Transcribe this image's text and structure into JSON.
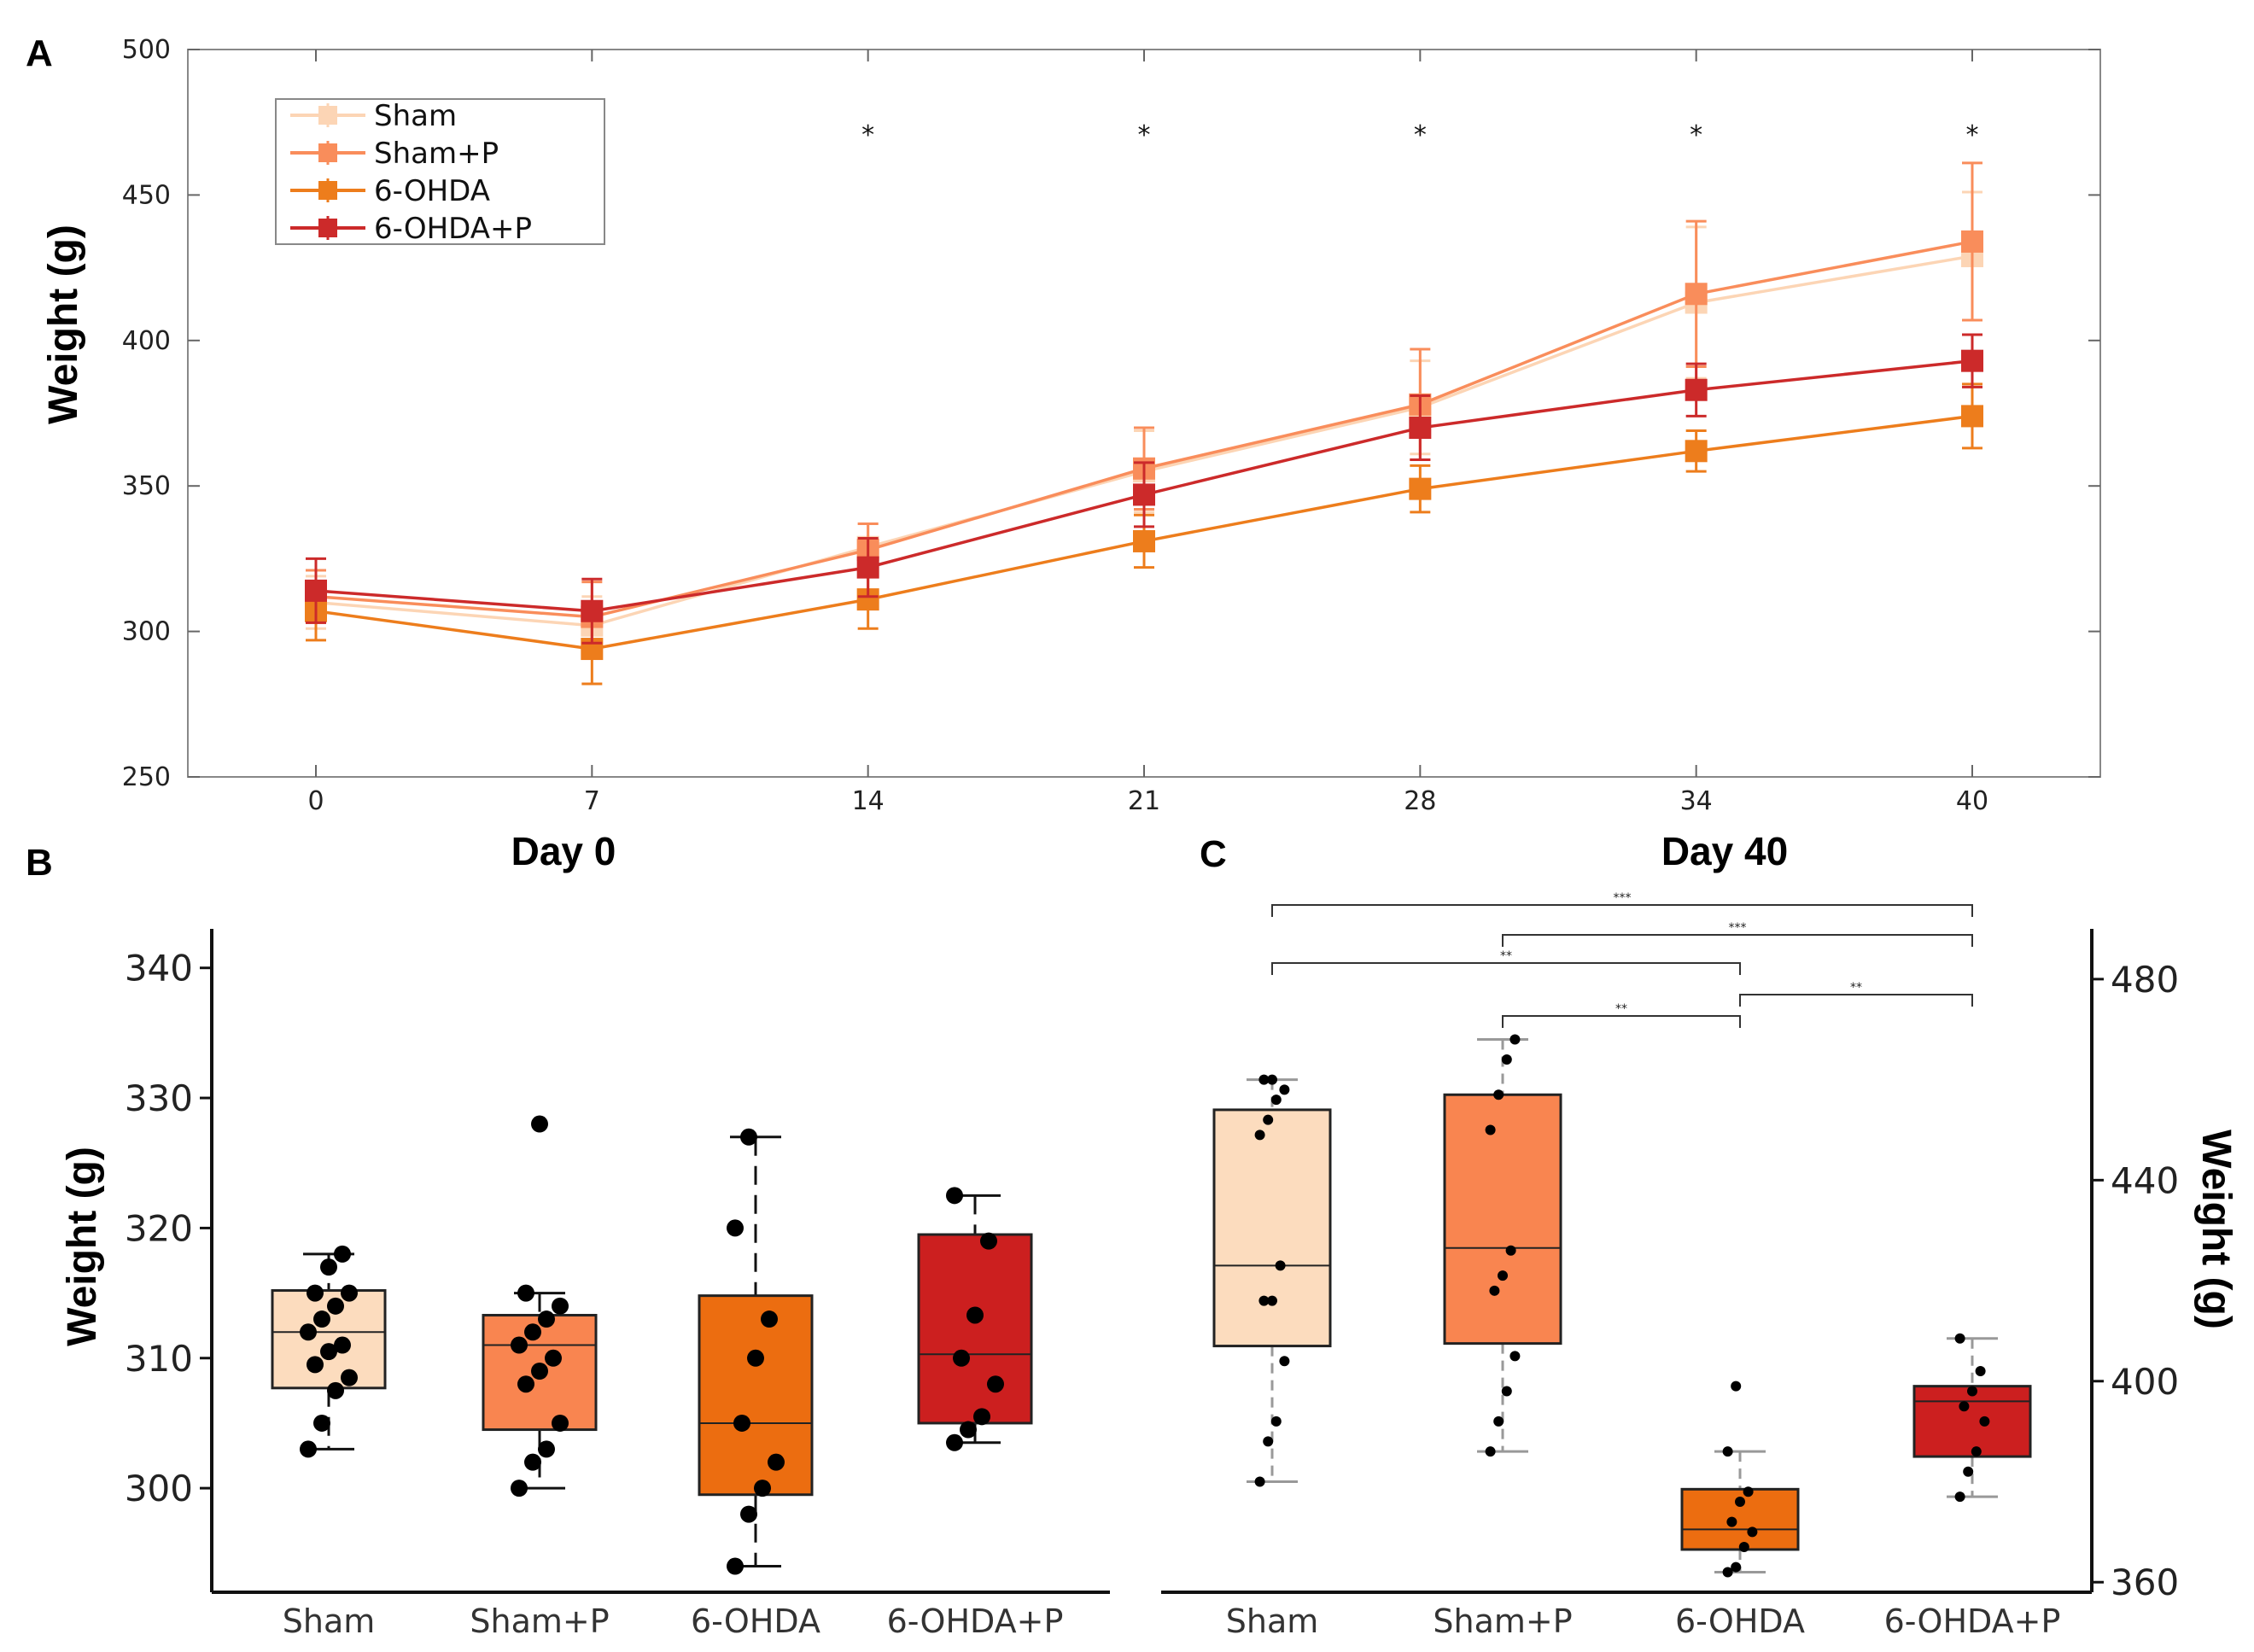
{
  "chart_data": [
    {
      "panel": "A",
      "type": "line",
      "ylabel": "Weight (g)",
      "xlabel": "",
      "x": [
        0,
        7,
        14,
        21,
        28,
        34,
        40
      ],
      "xticks": [
        "0",
        "7",
        "14",
        "21",
        "28",
        "34",
        "40"
      ],
      "ylim": [
        250,
        500
      ],
      "yticks": [
        250,
        300,
        350,
        400,
        450,
        500
      ],
      "legend": "top-left",
      "significance": [
        {
          "x": 14,
          "label": "*"
        },
        {
          "x": 21,
          "label": "*"
        },
        {
          "x": 28,
          "label": "*"
        },
        {
          "x": 34,
          "label": "*"
        },
        {
          "x": 40,
          "label": "*"
        }
      ],
      "series": [
        {
          "name": "Sham",
          "color": "#fcd5b5",
          "values": [
            310,
            302,
            329,
            355,
            377,
            413,
            429
          ],
          "errors": [
            9,
            10,
            8,
            14,
            16,
            26,
            22
          ]
        },
        {
          "name": "Sham+P",
          "color": "#f98d5b",
          "values": [
            312,
            305,
            328,
            356,
            378,
            416,
            434
          ],
          "errors": [
            9,
            12,
            9,
            14,
            19,
            25,
            27
          ]
        },
        {
          "name": "6-OHDA",
          "color": "#ed7d1c",
          "values": [
            307,
            294,
            311,
            331,
            349,
            362,
            374
          ],
          "errors": [
            10,
            12,
            10,
            9,
            8,
            7,
            11
          ]
        },
        {
          "name": "6-OHDA+P",
          "color": "#cc2a2a",
          "values": [
            314,
            307,
            322,
            347,
            370,
            383,
            393
          ],
          "errors": [
            11,
            11,
            10,
            11,
            11,
            9,
            9
          ]
        }
      ]
    },
    {
      "panel": "B",
      "title": "Day 0",
      "type": "box",
      "ylabel": "Weight (g)",
      "ylim": [
        292,
        343
      ],
      "yticks": [
        300,
        310,
        320,
        330,
        340
      ],
      "categories": [
        "Sham",
        "Sham+P",
        "6-OHDA",
        "6-OHDA+P"
      ],
      "boxes": [
        {
          "name": "Sham",
          "color": "#fcdcbe",
          "min": 303,
          "q1": 307.7,
          "median": 312,
          "q3": 315.2,
          "max": 318,
          "points": [
            303,
            305,
            307.5,
            308.5,
            309.5,
            310.5,
            311,
            312,
            313,
            314,
            315,
            315,
            317,
            318
          ]
        },
        {
          "name": "Sham+P",
          "color": "#f98550",
          "min": 300,
          "q1": 304.5,
          "median": 311,
          "q3": 313.3,
          "max": 315,
          "points": [
            300,
            302,
            303,
            305,
            308,
            309,
            310,
            311,
            312,
            313,
            314,
            315,
            328
          ]
        },
        {
          "name": "6-OHDA",
          "color": "#ec6d10",
          "min": 294,
          "q1": 299.5,
          "median": 305,
          "q3": 314.8,
          "max": 327,
          "points": [
            294,
            298,
            300,
            302,
            305,
            310,
            313,
            320,
            327
          ]
        },
        {
          "name": "6-OHDA+P",
          "color": "#cc1f1f",
          "min": 303.5,
          "q1": 305,
          "median": 310.3,
          "q3": 319.5,
          "max": 322.5,
          "points": [
            303.5,
            304.5,
            305.5,
            308,
            310,
            313.3,
            319,
            322.5
          ]
        }
      ]
    },
    {
      "panel": "C",
      "title": "Day 40",
      "type": "box",
      "ylabel": "Weight (g)",
      "ylim": [
        358,
        490
      ],
      "yticks": [
        360,
        400,
        440,
        480
      ],
      "categories": [
        "Sham",
        "Sham+P",
        "6-OHDA",
        "6-OHDA+P"
      ],
      "boxes": [
        {
          "name": "Sham",
          "color": "#fcdcbe",
          "min": 380,
          "q1": 407,
          "median": 423,
          "q3": 454,
          "max": 460,
          "points": [
            380,
            388,
            392,
            404,
            416,
            416,
            423,
            449,
            452,
            456,
            458,
            460,
            460
          ]
        },
        {
          "name": "Sham+P",
          "color": "#f98550",
          "min": 386,
          "q1": 407.5,
          "median": 426.5,
          "q3": 457,
          "max": 468,
          "points": [
            386,
            392,
            398,
            405,
            418,
            421,
            426,
            450,
            457,
            464,
            468
          ]
        },
        {
          "name": "6-OHDA",
          "color": "#ec6d10",
          "min": 362,
          "q1": 366.5,
          "median": 370.5,
          "q3": 378.5,
          "max": 386,
          "points": [
            362,
            363,
            367,
            370,
            372,
            376,
            378,
            386,
            399
          ]
        },
        {
          "name": "6-OHDA+P",
          "color": "#cc1f1f",
          "min": 377,
          "q1": 385,
          "median": 396,
          "q3": 399,
          "max": 408.5,
          "points": [
            377,
            382,
            386,
            392,
            395,
            398,
            402,
            408.5
          ]
        }
      ],
      "significance": [
        {
          "from": "Sham",
          "to": "6-OHDA+P",
          "label": "***"
        },
        {
          "from": "Sham+P",
          "to": "6-OHDA+P",
          "label": "***"
        },
        {
          "from": "Sham",
          "to": "6-OHDA",
          "label": "**"
        },
        {
          "from": "6-OHDA",
          "to": "6-OHDA+P",
          "label": "**"
        },
        {
          "from": "Sham+P",
          "to": "6-OHDA",
          "label": "**"
        }
      ]
    }
  ],
  "labels": {
    "panel_a": "A",
    "panel_b": "B",
    "panel_c": "C"
  }
}
